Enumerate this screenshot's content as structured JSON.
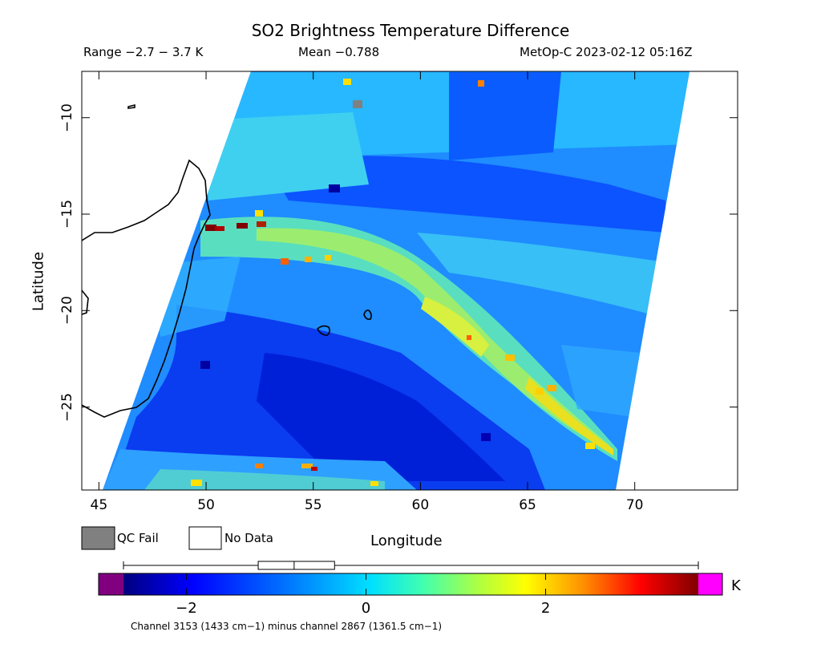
{
  "header": {
    "title": "SO2 Brightness Temperature Difference",
    "range": "Range −2.7 − 3.7 K",
    "mean": "Mean −0.788",
    "satellite_time": "MetOp-C 2023-02-12 05:16Z"
  },
  "map": {
    "x_axis_title": "Longitude",
    "y_axis_title": "Latitude",
    "lon_ticks": [
      {
        "value": 45,
        "label": "45"
      },
      {
        "value": 50,
        "label": "50"
      },
      {
        "value": 55,
        "label": "55"
      },
      {
        "value": 60,
        "label": "60"
      },
      {
        "value": 65,
        "label": "65"
      },
      {
        "value": 70,
        "label": "70"
      }
    ],
    "lat_ticks": [
      {
        "value": -10,
        "label": "−10"
      },
      {
        "value": -15,
        "label": "−15"
      },
      {
        "value": -20,
        "label": "−20"
      },
      {
        "value": -25,
        "label": "−25"
      }
    ],
    "lon_range": [
      44.2,
      74.8
    ],
    "lat_range": [
      -29.3,
      -7.6
    ],
    "features": [
      "Madagascar coastline",
      "Réunion",
      "Mauritius"
    ]
  },
  "legend": {
    "qc_fail": "QC Fail",
    "no_data": "No Data",
    "qc_color": "#808080"
  },
  "colorbar": {
    "unit": "K",
    "min": -2.7,
    "max": 3.7,
    "ticks": [
      {
        "value": -2,
        "label": "−2"
      },
      {
        "value": 0,
        "label": "0"
      },
      {
        "value": 2,
        "label": "2"
      }
    ],
    "low_color": "#800080",
    "high_color": "#ff00ff",
    "boxplot": {
      "min": -2.7,
      "q1": -1.2,
      "median": -0.8,
      "q3": -0.35,
      "max": 3.7
    }
  },
  "footnote": "Channel 3153 (1433 cm−1) minus channel 2867 (1361.5 cm−1)"
}
